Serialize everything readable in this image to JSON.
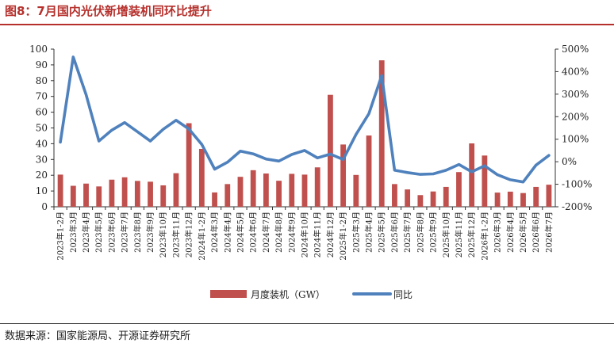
{
  "title": "图8：7月国内光伏新增装机同环比提升",
  "source": "数据来源：国家能源局、开源证券研究所",
  "colors": {
    "bar": "#c0504d",
    "line": "#4f81bd",
    "title": "#b5302c"
  },
  "chart_data": {
    "type": "bar",
    "categories": [
      "2023年1-2月",
      "2023年3月",
      "2023年4月",
      "2023年5月",
      "2023年6月",
      "2023年7月",
      "2023年8月",
      "2023年9月",
      "2023年10月",
      "2023年11月",
      "2023年12月",
      "2024年1-2月",
      "2024年3月",
      "2024年4月",
      "2024年5月",
      "2024年6月",
      "2024年7月",
      "2024年8月",
      "2024年9月",
      "2024年10月",
      "2024年11月",
      "2024年12月",
      "2025年1-2月",
      "2025年3月",
      "2025年4月",
      "2025年5月",
      "2025年6月",
      "2025年7月",
      "2025年8月",
      "2025年9月",
      "2025年10月",
      "2025年11月",
      "2025年12月",
      "2026年1-2月",
      "2026年3月",
      "2026年4月",
      "2026年5月",
      "2026年6月",
      "2026年7月"
    ],
    "series": [
      {
        "name": "月度装机（GW）",
        "type": "bar",
        "axis": "left",
        "values": [
          20.4,
          13.3,
          14.7,
          12.9,
          17.2,
          18.7,
          16.4,
          15.9,
          13.6,
          21.3,
          53.0,
          36.7,
          9.1,
          14.4,
          19.0,
          23.2,
          21.1,
          16.5,
          20.9,
          20.4,
          25.0,
          71.0,
          39.5,
          20.2,
          45.2,
          92.9,
          14.4,
          11.0,
          7.4,
          9.7,
          12.6,
          22.0,
          40.2,
          32.5,
          9.0,
          9.6,
          8.7,
          12.6,
          14.0
        ]
      },
      {
        "name": "同比",
        "type": "line",
        "axis": "right",
        "unit": "%",
        "values": [
          87,
          465,
          298,
          92,
          140,
          174,
          133,
          92,
          144,
          184,
          145,
          77,
          -33,
          -2,
          47,
          35,
          12,
          3,
          32,
          50,
          17,
          34,
          10,
          121,
          213,
          383,
          -38,
          -48,
          -56,
          -54,
          -38,
          -12,
          -45,
          -18,
          -58,
          -80,
          -90,
          -15,
          28
        ]
      }
    ],
    "ylim_left": [
      0,
      100
    ],
    "yticks_left": [
      "0",
      "10",
      "20",
      "30",
      "40",
      "50",
      "60",
      "70",
      "80",
      "90",
      "100"
    ],
    "ylim_right": [
      -200,
      500
    ],
    "yticks_right": [
      "-200%",
      "-100%",
      "0%",
      "100%",
      "200%",
      "300%",
      "400%",
      "500%"
    ],
    "grid": false,
    "legend_position": "bottom"
  }
}
